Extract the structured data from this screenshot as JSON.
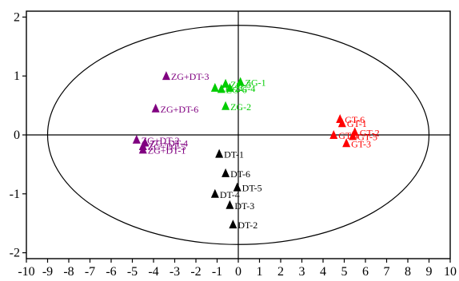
{
  "chart_data": {
    "type": "scatter",
    "title": "",
    "xlabel": "",
    "ylabel": "",
    "xlim": [
      -10,
      10
    ],
    "ylim": [
      -2.1,
      2.1
    ],
    "x_ticks": [
      -10,
      -9,
      -8,
      -7,
      -6,
      -5,
      -4,
      -3,
      -2,
      -1,
      0,
      1,
      2,
      3,
      4,
      5,
      6,
      7,
      8,
      9,
      10
    ],
    "y_ticks": [
      -2,
      -1,
      0,
      1,
      2
    ],
    "x_tick_labels": [
      "-10",
      "-9",
      "-8",
      "-7",
      "-6",
      "-5",
      "-4",
      "-3",
      "-2",
      "-1",
      "0",
      "1",
      "2",
      "3",
      "4",
      "5",
      "6",
      "7",
      "8",
      "9",
      "10"
    ],
    "y_tick_labels": [
      "-2",
      "-1",
      "0",
      "1",
      "2"
    ],
    "grid": false,
    "reference_lines": {
      "x": 0,
      "y": 0
    },
    "confidence_ellipse": {
      "center": [
        0,
        0
      ],
      "semi_axis_x": 9.0,
      "semi_axis_y": 1.86
    },
    "marker": "triangle",
    "series": [
      {
        "color": "#00cc00",
        "points": [
          {
            "label": "ZG-1",
            "x": 0.1,
            "y": 0.9
          },
          {
            "label": "ZG-2",
            "x": -0.6,
            "y": 0.49
          },
          {
            "label": "ZG-3",
            "x": -0.6,
            "y": 0.87
          },
          {
            "label": "ZG-4",
            "x": -0.4,
            "y": 0.8
          },
          {
            "label": "ZG-5",
            "x": -1.1,
            "y": 0.8
          },
          {
            "label": "ZG-6",
            "x": -0.8,
            "y": 0.78
          }
        ]
      },
      {
        "color": "#ff0000",
        "points": [
          {
            "label": "GT-1",
            "x": 4.9,
            "y": 0.2
          },
          {
            "label": "GT-2",
            "x": 5.5,
            "y": 0.05
          },
          {
            "label": "GT-3",
            "x": 5.1,
            "y": -0.14
          },
          {
            "label": "GT-4",
            "x": 4.5,
            "y": 0.0
          },
          {
            "label": "GT-5",
            "x": 5.4,
            "y": -0.02
          },
          {
            "label": "GT-6",
            "x": 4.8,
            "y": 0.27
          }
        ]
      },
      {
        "color": "#800080",
        "points": [
          {
            "label": "ZG+DT-1",
            "x": -4.5,
            "y": -0.25
          },
          {
            "label": "ZG+DT-2",
            "x": -4.8,
            "y": -0.08
          },
          {
            "label": "ZG+DT-3",
            "x": -3.4,
            "y": 1.0
          },
          {
            "label": "ZG+DT-4",
            "x": -4.4,
            "y": -0.13
          },
          {
            "label": "ZG+DT-5",
            "x": -4.5,
            "y": -0.19
          },
          {
            "label": "ZG+DT-6",
            "x": -3.9,
            "y": 0.45
          }
        ]
      },
      {
        "color": "#000000",
        "points": [
          {
            "label": "DT-1",
            "x": -0.9,
            "y": -0.32
          },
          {
            "label": "DT-2",
            "x": -0.25,
            "y": -1.52
          },
          {
            "label": "DT-3",
            "x": -0.4,
            "y": -1.19
          },
          {
            "label": "DT-4",
            "x": -1.1,
            "y": -1.0
          },
          {
            "label": "DT-5",
            "x": -0.05,
            "y": -0.89
          },
          {
            "label": "DT-6",
            "x": -0.6,
            "y": -0.65
          }
        ]
      }
    ]
  }
}
